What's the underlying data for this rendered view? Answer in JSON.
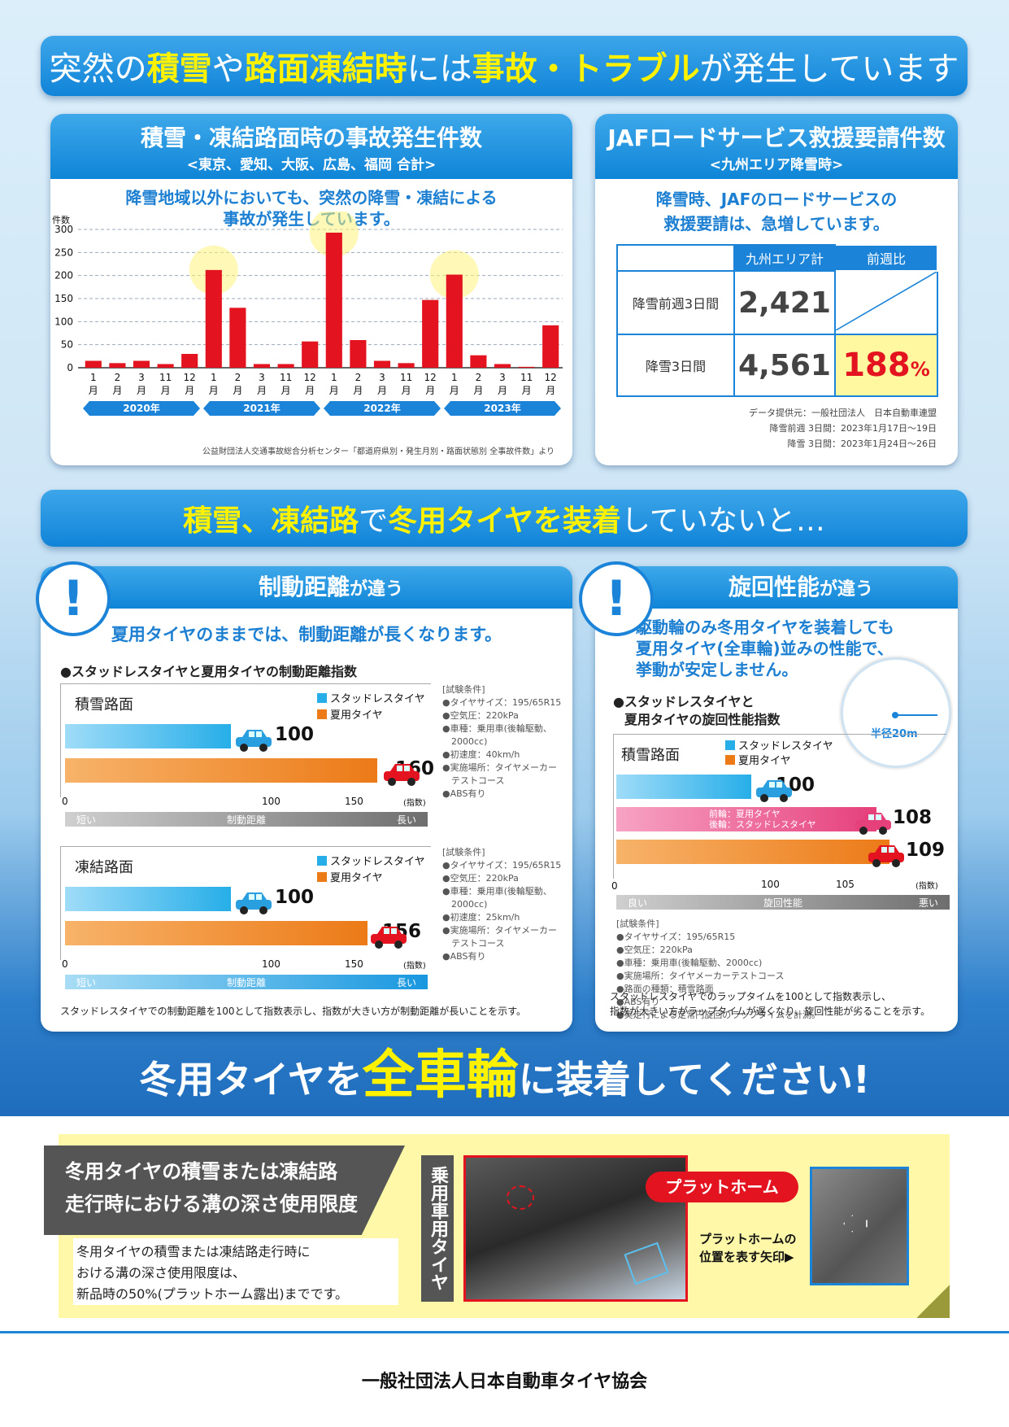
{
  "headline1": {
    "p1": "突然の",
    "p2": "積雪",
    "p3": "や",
    "p4": "路面凍結時",
    "p5": "には",
    "p6": "事故・トラブル",
    "p7": "が発生しています"
  },
  "accident_panel": {
    "title": "積雪・凍結路面時の事故発生件数",
    "subtitle": "<東京、愛知、大阪、広島、福岡 合計>",
    "note_l1": "降雪地域以外においても、突然の降雪・凍結による",
    "note_l2": "事故が発生しています。",
    "source": "公益財団法人交通事故総合分析センター「都道府県別・発生月別・路面状態別 全事故件数」より"
  },
  "chart_data": [
    {
      "type": "bar",
      "ylabel": "件数",
      "ylim": [
        0,
        300
      ],
      "yticks": [
        0,
        50,
        100,
        150,
        200,
        250,
        300
      ],
      "categories": [
        "1月",
        "2月",
        "3月",
        "11月",
        "12月",
        "1月",
        "2月",
        "3月",
        "11月",
        "12月",
        "1月",
        "2月",
        "3月",
        "11月",
        "12月",
        "1月",
        "2月",
        "3月",
        "11月",
        "12月"
      ],
      "groups": [
        "2020年",
        "2021年",
        "2022年",
        "2023年"
      ],
      "values": [
        15,
        10,
        15,
        8,
        30,
        212,
        130,
        8,
        8,
        57,
        293,
        60,
        15,
        10,
        147,
        202,
        27,
        8,
        2,
        92
      ],
      "color": "#e3141f"
    },
    {
      "type": "bar",
      "orientation": "horizontal",
      "title": "積雪路面",
      "series": [
        {
          "name": "スタッドレスタイヤ",
          "value": 100
        },
        {
          "name": "夏用タイヤ",
          "value": 160
        }
      ],
      "xticks": [
        0,
        100,
        150
      ],
      "unit": "(指数)"
    },
    {
      "type": "bar",
      "orientation": "horizontal",
      "title": "凍結路面",
      "series": [
        {
          "name": "スタッドレスタイヤ",
          "value": 100
        },
        {
          "name": "夏用タイヤ",
          "value": 156
        }
      ],
      "xticks": [
        0,
        100,
        150
      ],
      "unit": "(指数)"
    },
    {
      "type": "bar",
      "orientation": "horizontal",
      "title": "積雪路面",
      "series": [
        {
          "name": "スタッドレスタイヤ",
          "value": 100
        },
        {
          "name": "前輪：夏用タイヤ 後輪：スタッドレスタイヤ",
          "value": 108
        },
        {
          "name": "夏用タイヤ",
          "value": 109
        }
      ],
      "xticks": [
        0,
        100,
        105
      ],
      "unit": "(指数)"
    }
  ],
  "accident_chart": {
    "ylabel": "件数",
    "yticks": [
      "300",
      "250",
      "200",
      "150",
      "100",
      "50",
      "0"
    ],
    "months": [
      "1月",
      "2月",
      "3月",
      "11月",
      "12月",
      "1月",
      "2月",
      "3月",
      "11月",
      "12月",
      "1月",
      "2月",
      "3月",
      "11月",
      "12月",
      "1月",
      "2月",
      "3月",
      "11月",
      "12月"
    ],
    "years": [
      "2020年",
      "2021年",
      "2022年",
      "2023年"
    ]
  },
  "jaf_panel": {
    "title": "JAFロードサービス救援要請件数",
    "subtitle": "<九州エリア降雪時>",
    "note_l1": "降雪時、JAFのロードサービスの",
    "note_l2": "救援要請は、急増しています。",
    "col1": "九州エリア計",
    "col2": "前週比",
    "row1_label": "降雪前週3日間",
    "row1_value": "2,421",
    "row2_label": "降雪3日間",
    "row2_value": "4,561",
    "row2_ratio": "188",
    "row2_pct": "%",
    "credit1": "データ提供元：一般社団法人　日本自動車連盟",
    "credit2": "降雪前週 3日間：2023年1月17日～19日",
    "credit3": "降雪 3日間：2023年1月24日～26日"
  },
  "headline2": {
    "p1": "積雪、凍結路",
    "p2": "で",
    "p3": "冬用タイヤを装着",
    "p4": "していないと…"
  },
  "braking_panel": {
    "title_a": "制動距離",
    "title_b": "が違う",
    "lead": "夏用タイヤのままでは、制動距離が長くなります。",
    "chart_title": "●スタッドレスタイヤと夏用タイヤの制動距離指数",
    "snow_label": "積雪路面",
    "ice_label": "凍結路面",
    "legend_studless": "スタッドレスタイヤ",
    "legend_summer": "夏用タイヤ",
    "snow_v1": "100",
    "snow_v2": "160",
    "ice_v1": "100",
    "ice_v2": "156",
    "tick0": "0",
    "tick100": "100",
    "tick150": "150",
    "unit": "(指数)",
    "axis_short": "短い",
    "axis_name": "制動距離",
    "axis_long": "長い",
    "cond1": [
      "[試験条件]",
      "●タイヤサイズ：195/65R15",
      "●空気圧：220kPa",
      "●車種：乗用車(後輪駆動、",
      "　2000cc)",
      "●初速度：40km/h",
      "●実施場所：タイヤメーカー",
      "　テストコース",
      "●ABS有り"
    ],
    "cond2": [
      "[試験条件]",
      "●タイヤサイズ：195/65R15",
      "●空気圧：220kPa",
      "●車種：乗用車(後輪駆動、",
      "　2000cc)",
      "●初速度：25km/h",
      "●実施場所：タイヤメーカー",
      "　テストコース",
      "●ABS有り"
    ],
    "footnote": "スタッドレスタイヤでの制動距離を100として指数表示し、指数が大きい方が制動距離が長いことを示す。"
  },
  "turning_panel": {
    "title_a": "旋回性能",
    "title_b": "が違う",
    "lead_l1": "駆動輪のみ冬用タイヤを装着しても",
    "lead_l2": "夏用タイヤ(全車輪)並みの性能で、",
    "lead_l3": "挙動が安定しません。",
    "chart_title_l1": "●スタッドレスタイヤと",
    "chart_title_l2": "夏用タイヤの旋回性能指数",
    "radius": "半径20m",
    "snow_label": "積雪路面",
    "legend_studless": "スタッドレスタイヤ",
    "legend_summer": "夏用タイヤ",
    "mixed_l1": "前輪：夏用タイヤ",
    "mixed_l2": "後輪：スタッドレスタイヤ",
    "v1": "100",
    "v2": "108",
    "v3": "109",
    "tick0": "0",
    "tick100": "100",
    "tick105": "105",
    "unit": "(指数)",
    "axis_good": "良い",
    "axis_name": "旋回性能",
    "axis_bad": "悪い",
    "cond": [
      "[試験条件]",
      "●タイヤサイズ：195/65R15",
      "●空気圧：220kPa",
      "●車種：乗用車(後輪駆動、2000cc)",
      "●実施場所：タイヤメーカーテストコース",
      "●路面の種類：積雪路面",
      "●ABS有り",
      "●実走行による定常円旋回のラップタイムを計測。"
    ],
    "footnote_l1": "スタッドレスタイヤでのラップタイムを100として指数表示し、",
    "footnote_l2": "指数が大きい方がラップタイムが遅くなり、旋回性能が劣ることを示す。"
  },
  "cta": {
    "p1": "冬用タイヤを",
    "p2": "全車輪",
    "p3": "に装着してください!"
  },
  "tread": {
    "title_l1": "冬用タイヤの積雪または凍結路",
    "title_l2": "走行時における溝の深さ使用限度",
    "body_l1": "冬用タイヤの積雪または凍結路走行時に",
    "body_l2": "おける溝の深さ使用限度は、",
    "body_l3": "新品時の50%(プラットホーム露出)までです。",
    "vertical": "乗用車用タイヤ",
    "platform": "プラットホーム",
    "arrow_l1": "プラットホームの",
    "arrow_l2": "位置を表す矢印▶"
  },
  "footer": {
    "org": "一般社団法人日本自動車タイヤ協会"
  }
}
